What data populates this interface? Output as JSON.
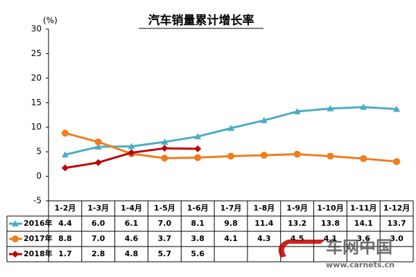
{
  "chart_data": {
    "type": "line",
    "title": "汽车销量累计增长率",
    "y_label": "(%)",
    "categories": [
      "1-2月",
      "1-3月",
      "1-4月",
      "1-5月",
      "1-6月",
      "1-7月",
      "1-8月",
      "1-9月",
      "1-10月",
      "1-11月",
      "1-12月"
    ],
    "series": [
      {
        "name": "2016年",
        "color": "#4bacc6",
        "marker": "triangle",
        "values": [
          4.4,
          6.0,
          6.1,
          7.0,
          8.1,
          9.8,
          11.4,
          13.2,
          13.8,
          14.1,
          13.7
        ],
        "value_labels": [
          "4.4",
          "6.0",
          "6.1",
          "7.0",
          "8.1",
          "9.8",
          "11.4",
          "13.2",
          "13.8",
          "14.1",
          "13.7"
        ]
      },
      {
        "name": "2017年",
        "color": "#f07c1c",
        "marker": "circle",
        "values": [
          8.8,
          7.0,
          4.6,
          3.7,
          3.8,
          4.1,
          4.3,
          4.5,
          4.1,
          3.6,
          3.0
        ],
        "value_labels": [
          "8.8",
          "7.0",
          "4.6",
          "3.7",
          "3.8",
          "4.1",
          "4.3",
          "4.5",
          "4.1",
          "3.6",
          "3.0"
        ]
      },
      {
        "name": "2018年",
        "color": "#c00000",
        "marker": "diamond",
        "values": [
          1.7,
          2.8,
          4.8,
          5.7,
          5.6,
          null,
          null,
          null,
          null,
          null,
          null
        ],
        "value_labels": [
          "1.7",
          "2.8",
          "4.8",
          "5.7",
          "5.6",
          null,
          null,
          null,
          null,
          null,
          null
        ]
      }
    ],
    "ylim": [
      -5,
      30
    ],
    "yticks": [
      -5,
      0,
      5,
      10,
      15,
      20,
      25,
      30
    ],
    "watermark": {
      "brand": "车网中国",
      "url": "www.carnets.cn"
    }
  }
}
